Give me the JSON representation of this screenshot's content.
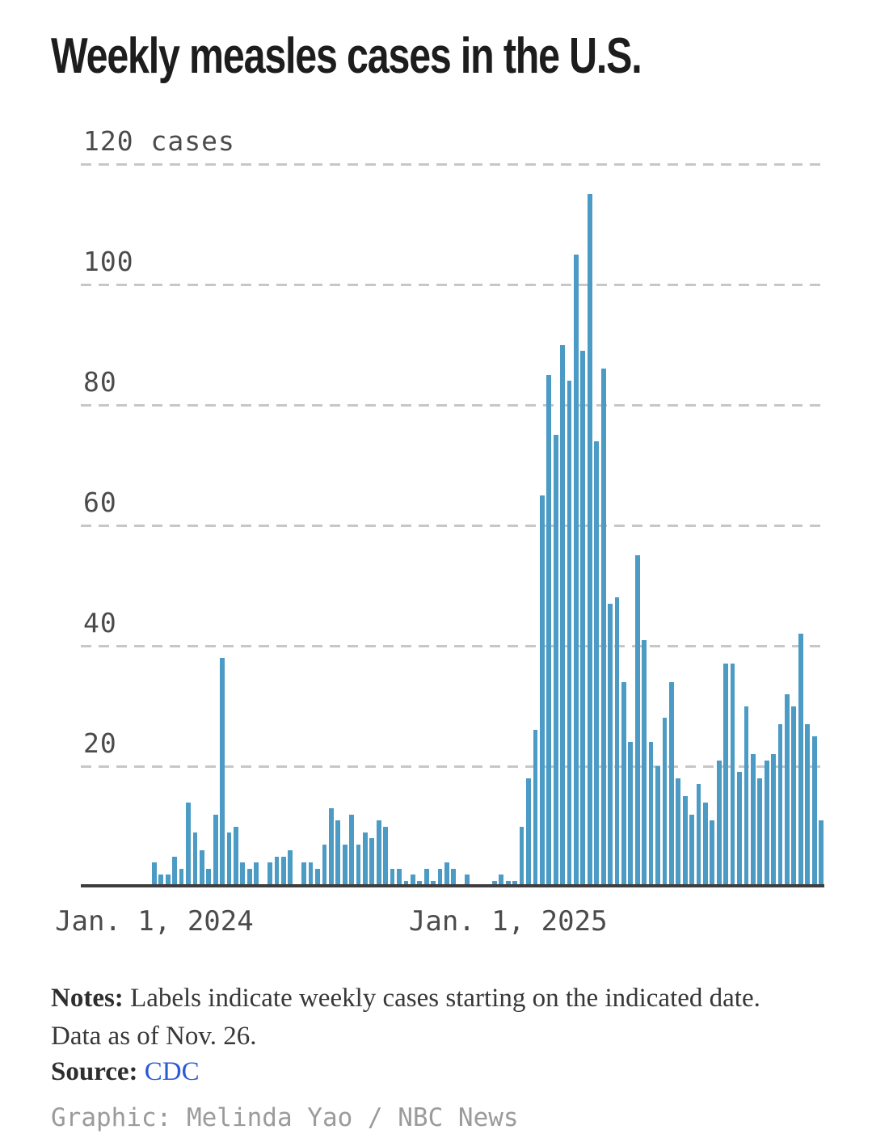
{
  "title": "Weekly measles cases in the U.S.",
  "colors": {
    "bar": "#4b9bc5",
    "gridline": "#c7c7c7",
    "axis_line": "#3d3d3d",
    "axis_text": "#4b4b4b",
    "title_text": "#1d1d1d",
    "notes_text": "#383838",
    "source_link": "#2b5ad6",
    "credit_text": "#9b9b9b"
  },
  "chart_data": {
    "type": "bar",
    "title": "Weekly measles cases in the U.S.",
    "xlabel": "",
    "ylabel": "cases",
    "ylim": [
      0,
      120
    ],
    "grid": "dashed-horizontal",
    "legend": "none",
    "x_unit": "week (weekly cases starting on the indicated date)",
    "x_ticks": [
      {
        "label": "Jan. 1, 2024",
        "week_index": 0
      },
      {
        "label": "Jan. 1, 2025",
        "week_index": 52
      }
    ],
    "y_ticks": [
      {
        "value": 120,
        "label": "120 cases"
      },
      {
        "value": 100,
        "label": "100"
      },
      {
        "value": 80,
        "label": "80"
      },
      {
        "value": 60,
        "label": "60"
      },
      {
        "value": 40,
        "label": "40"
      },
      {
        "value": 20,
        "label": "20"
      }
    ],
    "first_week_label": "Jan. 1, 2024",
    "values": [
      4,
      2,
      2,
      5,
      3,
      14,
      9,
      6,
      3,
      12,
      38,
      9,
      10,
      4,
      3,
      4,
      0,
      4,
      5,
      5,
      6,
      0,
      4,
      4,
      3,
      7,
      13,
      11,
      7,
      12,
      7,
      9,
      8,
      11,
      10,
      3,
      3,
      1,
      2,
      1,
      3,
      1,
      3,
      4,
      3,
      0,
      2,
      0,
      0,
      0,
      1,
      2,
      1,
      1,
      10,
      18,
      26,
      65,
      85,
      75,
      90,
      84,
      105,
      89,
      115,
      74,
      86,
      47,
      48,
      34,
      24,
      55,
      41,
      24,
      20,
      28,
      34,
      18,
      15,
      12,
      17,
      14,
      11,
      21,
      37,
      37,
      19,
      30,
      22,
      18,
      21,
      22,
      27,
      32,
      30,
      42,
      27,
      25,
      11
    ]
  },
  "notes": {
    "label": "Notes:",
    "text": "Labels indicate weekly cases starting on the indicated date. Data as of Nov. 26."
  },
  "source": {
    "label": "Source:",
    "link_text": "CDC"
  },
  "credit": "Graphic: Melinda Yao / NBC News"
}
